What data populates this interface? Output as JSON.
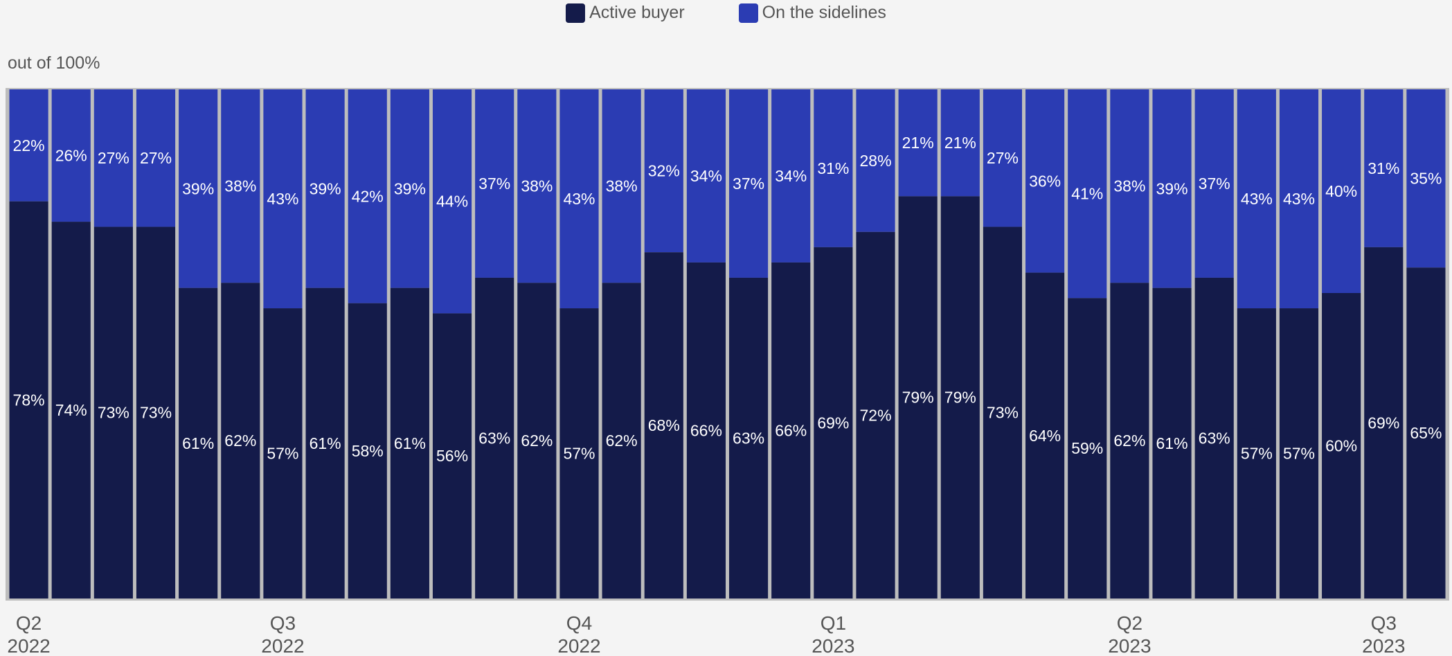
{
  "legend": [
    {
      "name": "Active buyer",
      "color": "#141b4a"
    },
    {
      "name": "On the sidelines",
      "color": "#2b3cb3"
    }
  ],
  "unit_label": "out of 100%",
  "chart_data": {
    "type": "bar",
    "stacked": true,
    "ylim": [
      0,
      100
    ],
    "grid": false,
    "legend_position": "top-center",
    "categories": [
      "1",
      "2",
      "3",
      "4",
      "5",
      "6",
      "7",
      "8",
      "9",
      "10",
      "11",
      "12",
      "13",
      "14",
      "15",
      "16",
      "17",
      "18",
      "19",
      "20",
      "21",
      "22",
      "23",
      "24",
      "25",
      "26",
      "27",
      "28",
      "29",
      "30",
      "31",
      "32",
      "33",
      "34"
    ],
    "series": [
      {
        "name": "Active buyer",
        "color": "#141b4a",
        "values": [
          78,
          74,
          73,
          73,
          61,
          62,
          57,
          61,
          58,
          61,
          56,
          63,
          62,
          57,
          62,
          68,
          66,
          63,
          66,
          69,
          72,
          79,
          79,
          73,
          64,
          59,
          62,
          61,
          63,
          57,
          57,
          60,
          69,
          65
        ],
        "labels": [
          "78%",
          "74%",
          "73%",
          "73%",
          "61%",
          "62%",
          "57%",
          "61%",
          "58%",
          "61%",
          "56%",
          "63%",
          "62%",
          "57%",
          "62%",
          "68%",
          "66%",
          "63%",
          "66%",
          "69%",
          "72%",
          "79%",
          "79%",
          "73%",
          "64%",
          "59%",
          "62%",
          "61%",
          "63%",
          "57%",
          "57%",
          "60%",
          "69%",
          "65%"
        ]
      },
      {
        "name": "On the sidelines",
        "color": "#2b3cb3",
        "values": [
          22,
          26,
          27,
          27,
          39,
          38,
          43,
          39,
          42,
          39,
          44,
          37,
          38,
          43,
          38,
          32,
          34,
          37,
          34,
          31,
          28,
          21,
          21,
          27,
          36,
          41,
          38,
          39,
          37,
          43,
          43,
          40,
          31,
          35
        ],
        "labels": [
          "22%",
          "26%",
          "27%",
          "27%",
          "39%",
          "38%",
          "43%",
          "39%",
          "42%",
          "39%",
          "44%",
          "37%",
          "38%",
          "43%",
          "38%",
          "32%",
          "34%",
          "37%",
          "34%",
          "31%",
          "28%",
          "21%",
          "21%",
          "27%",
          "36%",
          "41%",
          "38%",
          "39%",
          "37%",
          "43%",
          "43%",
          "40%",
          "31%",
          "35%"
        ]
      }
    ],
    "x_ticks": [
      {
        "bar_index": 0,
        "line1": "Q2",
        "line2": "2022"
      },
      {
        "bar_index": 6,
        "line1": "Q3",
        "line2": "2022"
      },
      {
        "bar_index": 13,
        "line1": "Q4",
        "line2": "2022"
      },
      {
        "bar_index": 19,
        "line1": "Q1",
        "line2": "2023"
      },
      {
        "bar_index": 26,
        "line1": "Q2",
        "line2": "2023"
      },
      {
        "bar_index": 32,
        "line1": "Q3",
        "line2": "2023"
      }
    ]
  }
}
